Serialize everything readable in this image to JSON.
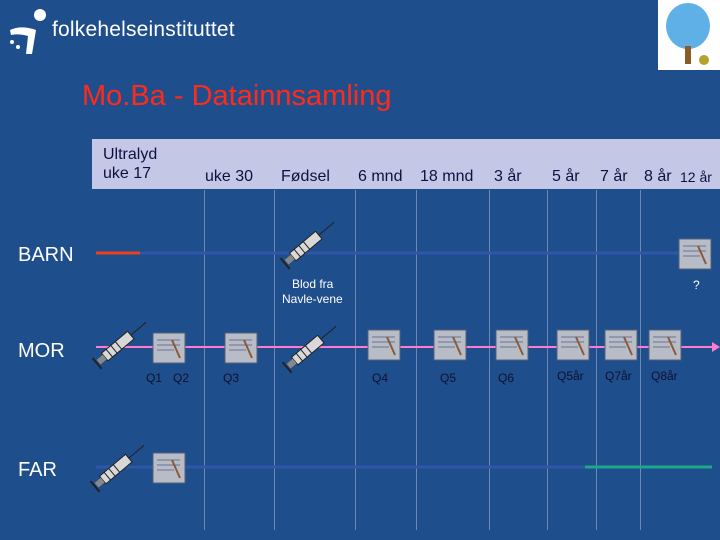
{
  "header": {
    "org_name": "folkehelseinstituttet",
    "title": "Mo.Ba - Datainnsamling"
  },
  "timeline": {
    "ultralyd_line1": "Ultralyd",
    "ultralyd_line2": "uke 17",
    "uke30": "uke 30",
    "fodsel": "Fødsel",
    "mnd6": "6 mnd",
    "mnd18": "18 mnd",
    "aar3": "3 år",
    "aar5": "5 år",
    "aar7": "7 år",
    "aar8": "8 år",
    "aar12": "12 år"
  },
  "rows": {
    "barn": "BARN",
    "mor": "MOR",
    "far": "FAR"
  },
  "annotations": {
    "blod_line1": "Blod fra",
    "blod_line2": "Navle-vene",
    "question_mark": "?"
  },
  "questionnaires": {
    "q1": "Q1",
    "q2": "Q2",
    "q3": "Q3",
    "q4": "Q4",
    "q5": "Q5",
    "q6": "Q6",
    "q5aar": "Q5år",
    "q7aar": "Q7år",
    "q8aar": "Q8år"
  },
  "colors": {
    "background": "#1f4e8c",
    "title": "#ff2a1a",
    "header_band": "#c4c7e6",
    "barn_line_red": "#e8431e",
    "barn_line_blue": "#2f56a8",
    "mor_line": "#ff7ad0",
    "far_line_blue": "#2f56a8",
    "far_line_green": "#1ea88a"
  }
}
